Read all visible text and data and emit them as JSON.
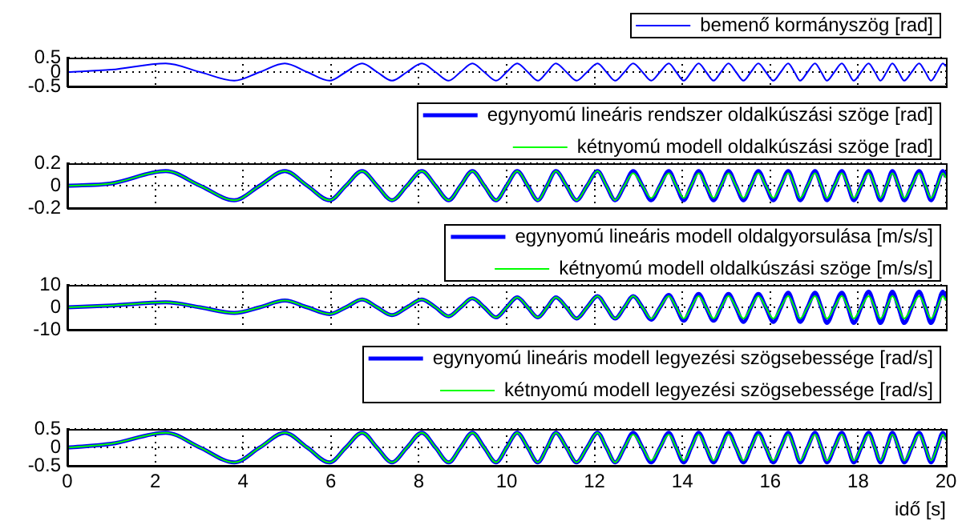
{
  "chart_data": [
    {
      "type": "line",
      "x": [
        0,
        1,
        2.24,
        3.02,
        3.8,
        4.38,
        4.95,
        5.46,
        5.97,
        6.34,
        6.71,
        7.05,
        7.39,
        7.73,
        8.07,
        8.38,
        8.68,
        8.95,
        9.22,
        9.49,
        9.76,
        10.0,
        10.24,
        10.48,
        10.71,
        10.92,
        11.12,
        11.36,
        11.59,
        11.83,
        12.07,
        12.27,
        12.47,
        12.68,
        12.88,
        13.09,
        13.29,
        13.49,
        13.69,
        13.86,
        14.03,
        14.2,
        14.37,
        14.54,
        14.71,
        14.88,
        15.05,
        15.22,
        15.39,
        15.56,
        15.73,
        15.9,
        16.07,
        16.24,
        16.41,
        16.55,
        16.68,
        16.85,
        17.02,
        17.16,
        17.29,
        17.46,
        17.63,
        17.77,
        17.9,
        18.07,
        18.24,
        18.38,
        18.51,
        18.65,
        18.78,
        18.92,
        19.05,
        19.22,
        19.39,
        19.53,
        19.66,
        19.8,
        19.93,
        20
      ],
      "series": [
        {
          "name": "bemenő kormányszög [rad]",
          "color": "#0000ff",
          "values": [
            0,
            0.08,
            0.3,
            0,
            -0.3,
            0,
            0.3,
            0,
            -0.3,
            0,
            0.3,
            0,
            -0.3,
            0,
            0.3,
            0,
            -0.3,
            0,
            0.3,
            0,
            -0.3,
            0,
            0.3,
            0,
            -0.3,
            0,
            0.3,
            0,
            -0.3,
            0,
            0.3,
            0,
            -0.3,
            0,
            0.3,
            0,
            -0.3,
            0,
            0.3,
            0,
            -0.3,
            0,
            0.3,
            0,
            -0.3,
            0,
            0.3,
            0,
            -0.3,
            0,
            0.3,
            0,
            -0.3,
            0,
            0.3,
            0,
            -0.3,
            0,
            0.3,
            0,
            -0.3,
            0,
            0.3,
            0,
            -0.3,
            0,
            0.3,
            0,
            -0.3,
            0,
            0.3,
            0,
            -0.3,
            0,
            0.3,
            0,
            -0.3,
            0,
            0.3,
            0.2
          ]
        }
      ],
      "xlim": [
        0,
        20
      ],
      "xticks": [
        0,
        2,
        4,
        6,
        8,
        10,
        12,
        14,
        16,
        18,
        20
      ],
      "ylim": [
        -0.5,
        0.5
      ],
      "yticks": [
        -0.5,
        0,
        0.5
      ],
      "grid": true,
      "legend": "top right",
      "tick_labels": "y",
      "marker": "none",
      "line_style": "solid"
    },
    {
      "type": "line",
      "x": [
        0,
        1,
        2.24,
        3.02,
        3.8,
        4.38,
        4.95,
        5.46,
        5.97,
        6.34,
        6.71,
        7.05,
        7.39,
        7.73,
        8.07,
        8.38,
        8.68,
        8.95,
        9.22,
        9.49,
        9.76,
        10.0,
        10.24,
        10.48,
        10.71,
        10.92,
        11.12,
        11.36,
        11.59,
        11.83,
        12.07,
        12.27,
        12.47,
        12.68,
        12.88,
        13.09,
        13.29,
        13.49,
        13.69,
        13.86,
        14.03,
        14.2,
        14.37,
        14.54,
        14.71,
        14.88,
        15.05,
        15.22,
        15.39,
        15.56,
        15.73,
        15.9,
        16.07,
        16.24,
        16.41,
        16.55,
        16.68,
        16.85,
        17.02,
        17.16,
        17.29,
        17.46,
        17.63,
        17.77,
        17.9,
        18.07,
        18.24,
        18.38,
        18.51,
        18.65,
        18.78,
        18.92,
        19.05,
        19.22,
        19.39,
        19.53,
        19.66,
        19.8,
        19.93,
        20
      ],
      "series": [
        {
          "name": "egynyomú lineáris rendszer oldalkúszási szöge [rad]",
          "color": "#0000ff",
          "values": [
            0,
            0.02,
            0.13,
            0,
            -0.13,
            0,
            0.13,
            0,
            -0.13,
            0,
            0.13,
            0,
            -0.13,
            0,
            0.13,
            0,
            -0.13,
            0,
            0.13,
            0,
            -0.13,
            0,
            0.13,
            0,
            -0.13,
            0,
            0.13,
            0,
            -0.13,
            0,
            0.13,
            0,
            -0.13,
            0,
            0.13,
            0,
            -0.13,
            0,
            0.13,
            0,
            -0.13,
            0,
            0.13,
            0,
            -0.13,
            0,
            0.13,
            0,
            -0.13,
            0,
            0.13,
            0,
            -0.13,
            0,
            0.13,
            0,
            -0.13,
            0,
            0.13,
            0,
            -0.13,
            0,
            0.13,
            0,
            -0.13,
            0,
            0.13,
            0,
            -0.13,
            0,
            0.13,
            0,
            -0.13,
            0,
            0.13,
            0,
            -0.13,
            0,
            0.13,
            0.08
          ]
        },
        {
          "name": "kétnyomú modell oldalkúszási szöge [rad]",
          "color": "#00ff00",
          "values": [
            0,
            0.02,
            0.13,
            0,
            -0.13,
            0,
            0.13,
            0,
            -0.13,
            0,
            0.13,
            0,
            -0.13,
            0,
            0.13,
            0,
            -0.13,
            0,
            0.13,
            0,
            -0.13,
            0,
            0.13,
            0,
            -0.13,
            0,
            0.13,
            0,
            -0.13,
            0,
            0.13,
            0,
            -0.13,
            0,
            0.11,
            0,
            -0.11,
            0,
            0.11,
            0,
            -0.11,
            0,
            0.11,
            0,
            -0.11,
            0,
            0.11,
            0,
            -0.11,
            0,
            0.11,
            0,
            -0.11,
            0,
            0.11,
            0,
            -0.11,
            0,
            0.11,
            0,
            -0.11,
            0,
            0.11,
            0,
            -0.11,
            0,
            0.11,
            0,
            -0.11,
            0,
            0.11,
            0,
            -0.11,
            0,
            0.11,
            0,
            -0.11,
            0,
            0.11,
            0.07
          ]
        }
      ],
      "xlim": [
        0,
        20
      ],
      "xticks": [
        0,
        2,
        4,
        6,
        8,
        10,
        12,
        14,
        16,
        18,
        20
      ],
      "ylim": [
        -0.2,
        0.2
      ],
      "yticks": [
        -0.2,
        0,
        0.2
      ],
      "grid": true,
      "legend": "top right",
      "tick_labels": "y",
      "marker": "none",
      "line_style": "solid"
    },
    {
      "type": "line",
      "x": [
        0,
        1,
        2.24,
        3.02,
        3.8,
        4.38,
        4.95,
        5.46,
        5.97,
        6.34,
        6.71,
        7.05,
        7.39,
        7.73,
        8.07,
        8.38,
        8.68,
        8.95,
        9.22,
        9.49,
        9.76,
        10.0,
        10.24,
        10.48,
        10.71,
        10.92,
        11.12,
        11.36,
        11.59,
        11.83,
        12.07,
        12.27,
        12.47,
        12.68,
        12.88,
        13.09,
        13.29,
        13.49,
        13.69,
        13.86,
        14.03,
        14.2,
        14.37,
        14.54,
        14.71,
        14.88,
        15.05,
        15.22,
        15.39,
        15.56,
        15.73,
        15.9,
        16.07,
        16.24,
        16.41,
        16.55,
        16.68,
        16.85,
        17.02,
        17.16,
        17.29,
        17.46,
        17.63,
        17.77,
        17.9,
        18.07,
        18.24,
        18.38,
        18.51,
        18.65,
        18.78,
        18.92,
        19.05,
        19.22,
        19.39,
        19.53,
        19.66,
        19.8,
        19.93,
        20
      ],
      "series": [
        {
          "name": "egynyomú lineáris modell oldalgyorsulása [m/s/s]",
          "color": "#0000ff",
          "values": [
            0,
            0.8,
            2.2,
            0,
            -2.5,
            0,
            3,
            0,
            -3,
            0,
            3.5,
            0,
            -3.5,
            0,
            3.5,
            0,
            -4,
            0,
            4,
            0,
            -4.5,
            0,
            4.5,
            0,
            -4.5,
            0,
            4.5,
            0,
            -5,
            0,
            5,
            0,
            -5,
            0,
            5,
            0,
            -5.5,
            0,
            5.5,
            0,
            -6,
            0,
            6,
            0,
            -6,
            0,
            6,
            0,
            -6.5,
            0,
            6,
            0,
            -6.5,
            0,
            6.5,
            0,
            -6.5,
            0,
            6.5,
            0,
            -7,
            0,
            6.5,
            0,
            -7,
            0,
            7,
            0,
            -7,
            0,
            7,
            0,
            -7,
            0,
            7,
            0,
            -7,
            0,
            7,
            4
          ]
        },
        {
          "name": "kétnyomú modell oldalkúszási szöge [m/s/s]",
          "color": "#00ff00",
          "values": [
            0,
            0.8,
            2.2,
            0,
            -2.5,
            0,
            3,
            0,
            -3,
            0,
            3.5,
            0,
            -3.5,
            0,
            3.5,
            0,
            -4,
            0,
            4,
            0,
            -4.5,
            0,
            4.5,
            0,
            -4.5,
            0,
            4.5,
            0,
            -5,
            0,
            5,
            0,
            -5,
            0,
            5,
            0,
            -5,
            0,
            5,
            0,
            -5,
            0,
            5,
            0,
            -5,
            0,
            5,
            0,
            -5,
            0,
            5,
            0,
            -5,
            0,
            5,
            0,
            -5,
            0,
            5,
            0,
            -5,
            0,
            5,
            0,
            -5,
            0,
            5,
            0,
            -5,
            0,
            5,
            0,
            -5,
            0,
            5,
            0,
            -5,
            0,
            5,
            3
          ]
        }
      ],
      "xlim": [
        0,
        20
      ],
      "xticks": [
        0,
        2,
        4,
        6,
        8,
        10,
        12,
        14,
        16,
        18,
        20
      ],
      "ylim": [
        -10,
        10
      ],
      "yticks": [
        -10,
        0,
        10
      ],
      "grid": true,
      "legend": "top right",
      "tick_labels": "y",
      "marker": "none",
      "line_style": "solid"
    },
    {
      "type": "line",
      "xlabel": "idő [s]",
      "x": [
        0,
        1,
        2.24,
        3.02,
        3.8,
        4.38,
        4.95,
        5.46,
        5.97,
        6.34,
        6.71,
        7.05,
        7.39,
        7.73,
        8.07,
        8.38,
        8.68,
        8.95,
        9.22,
        9.49,
        9.76,
        10.0,
        10.24,
        10.48,
        10.71,
        10.92,
        11.12,
        11.36,
        11.59,
        11.83,
        12.07,
        12.27,
        12.47,
        12.68,
        12.88,
        13.09,
        13.29,
        13.49,
        13.69,
        13.86,
        14.03,
        14.2,
        14.37,
        14.54,
        14.71,
        14.88,
        15.05,
        15.22,
        15.39,
        15.56,
        15.73,
        15.9,
        16.07,
        16.24,
        16.41,
        16.55,
        16.68,
        16.85,
        17.02,
        17.16,
        17.29,
        17.46,
        17.63,
        17.77,
        17.9,
        18.07,
        18.24,
        18.38,
        18.51,
        18.65,
        18.78,
        18.92,
        19.05,
        19.22,
        19.39,
        19.53,
        19.66,
        19.8,
        19.93,
        20
      ],
      "series": [
        {
          "name": "egynyomú lineáris modell legyezési szögsebessége [rad/s]",
          "color": "#0000ff",
          "values": [
            0,
            0.1,
            0.4,
            0,
            -0.4,
            0,
            0.4,
            0,
            -0.4,
            0,
            0.4,
            0,
            -0.4,
            0,
            0.4,
            0,
            -0.4,
            0,
            0.4,
            0,
            -0.4,
            0,
            0.4,
            0,
            -0.4,
            0,
            0.4,
            0,
            -0.4,
            0,
            0.4,
            0,
            -0.4,
            0,
            0.4,
            0,
            -0.4,
            0,
            0.4,
            0,
            -0.4,
            0,
            0.4,
            0,
            -0.4,
            0,
            0.4,
            0,
            -0.4,
            0,
            0.4,
            0,
            -0.4,
            0,
            0.4,
            0,
            -0.4,
            0,
            0.4,
            0,
            -0.4,
            0,
            0.4,
            0,
            -0.4,
            0,
            0.4,
            0,
            -0.4,
            0,
            0.4,
            0,
            -0.4,
            0,
            0.4,
            0,
            -0.4,
            0,
            0.4,
            0.25
          ]
        },
        {
          "name": "kétnyomú modell legyezési szögsebessége [rad/s]",
          "color": "#00ff00",
          "values": [
            0,
            0.1,
            0.4,
            0,
            -0.4,
            0,
            0.4,
            0,
            -0.4,
            0,
            0.4,
            0,
            -0.4,
            0,
            0.4,
            0,
            -0.4,
            0,
            0.4,
            0,
            -0.4,
            0,
            0.4,
            0,
            -0.4,
            0,
            0.4,
            0,
            -0.4,
            0,
            0.4,
            0,
            -0.4,
            0,
            0.35,
            0,
            -0.35,
            0,
            0.35,
            0,
            -0.35,
            0,
            0.35,
            0,
            -0.35,
            0,
            0.35,
            0,
            -0.35,
            0,
            0.35,
            0,
            -0.35,
            0,
            0.35,
            0,
            -0.35,
            0,
            0.35,
            0,
            -0.35,
            0,
            0.35,
            0,
            -0.35,
            0,
            0.35,
            0,
            -0.35,
            0,
            0.35,
            0,
            -0.35,
            0,
            0.35,
            0,
            -0.35,
            0,
            0.35,
            0.2
          ]
        }
      ],
      "xlim": [
        0,
        20
      ],
      "xticks": [
        0,
        2,
        4,
        6,
        8,
        10,
        12,
        14,
        16,
        18,
        20
      ],
      "ylim": [
        -0.5,
        0.5
      ],
      "yticks": [
        -0.5,
        0,
        0.5
      ],
      "grid": true,
      "legend": "top right",
      "marker": "none",
      "line_style": "solid"
    }
  ]
}
